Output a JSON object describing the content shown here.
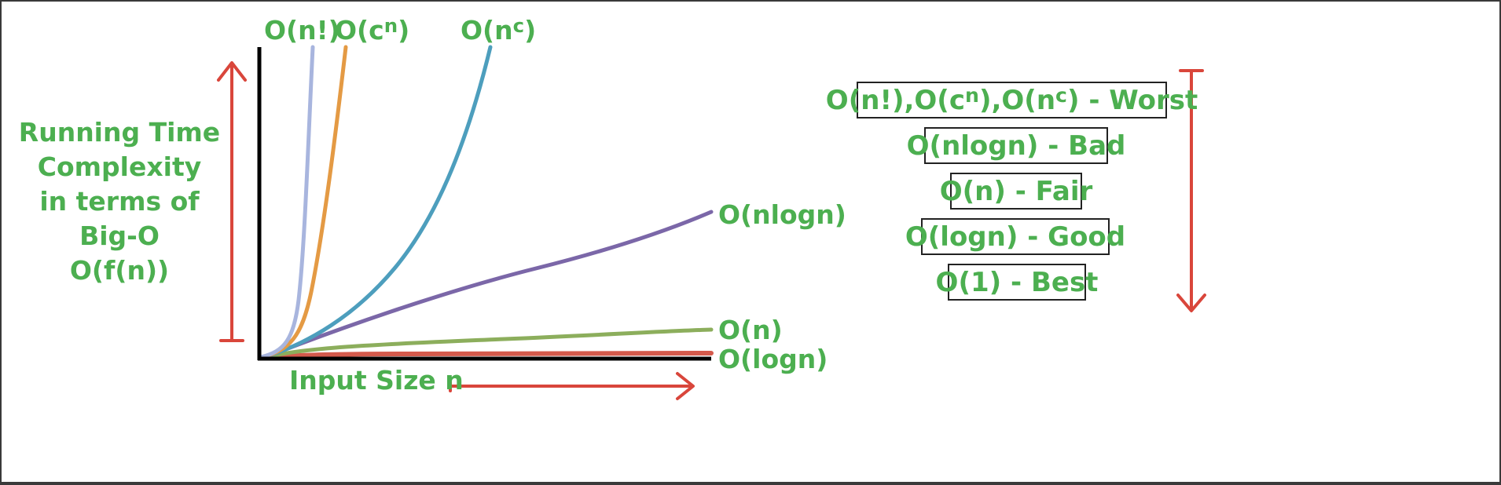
{
  "chart_data": {
    "type": "line",
    "xlabel": "Input Size n",
    "ylabel_lines": [
      "Running Time",
      "Complexity",
      "in terms of",
      "Big-O",
      "O(f(n))"
    ],
    "series": [
      {
        "key": "factorial",
        "name_parts": [
          {
            "t": "O(n!)"
          }
        ],
        "color": "#a8b5de",
        "growth": "factorial"
      },
      {
        "key": "exponential",
        "name_parts": [
          {
            "t": "O(c"
          },
          {
            "t": "n",
            "sup": true
          },
          {
            "t": ")"
          }
        ],
        "color": "#e49a44",
        "growth": "exponential"
      },
      {
        "key": "polynomial",
        "name_parts": [
          {
            "t": "O(n"
          },
          {
            "t": "c",
            "sup": true
          },
          {
            "t": ")"
          }
        ],
        "color": "#4d9ebd",
        "growth": "polynomial"
      },
      {
        "key": "nlogn",
        "name_parts": [
          {
            "t": "O(nlogn)"
          }
        ],
        "color": "#7b67a8",
        "growth": "linearithmic"
      },
      {
        "key": "linear",
        "name_parts": [
          {
            "t": "O(n)"
          }
        ],
        "color": "#8cae5c",
        "growth": "linear"
      },
      {
        "key": "logn",
        "name_parts": [
          {
            "t": "O(logn)"
          }
        ],
        "color": "#d45a4c",
        "growth": "logarithmic"
      }
    ],
    "rankings": [
      [
        {
          "t": "O(n!),O(c"
        },
        {
          "t": "n",
          "sup": true
        },
        {
          "t": "),O(n"
        },
        {
          "t": "c",
          "sup": true
        },
        {
          "t": ") - Worst"
        }
      ],
      [
        {
          "t": "O(nlogn) - Bad"
        }
      ],
      [
        {
          "t": "O(n) - Fair"
        }
      ],
      [
        {
          "t": "O(logn) - Good"
        }
      ],
      [
        {
          "t": "O(1) - Best"
        }
      ]
    ],
    "colors": {
      "text": "#4caf50",
      "arrow": "#d9463b",
      "axis": "#000000",
      "box_border": "#222222",
      "background": "#ffffff",
      "frame": "#3a3a3a"
    }
  }
}
